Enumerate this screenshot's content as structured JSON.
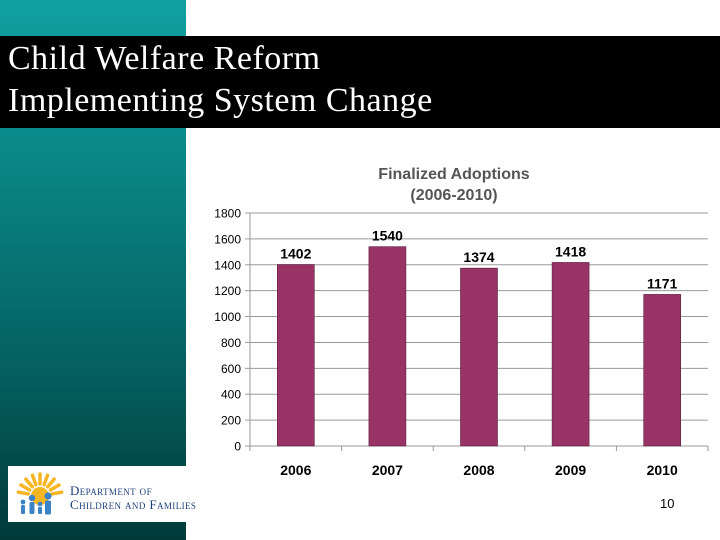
{
  "slide": {
    "title_line_1": "Child Welfare Reform",
    "title_line_2": "Implementing System Change",
    "page_number": "10"
  },
  "logo": {
    "line_1": "Department of",
    "line_2": "Children and Families"
  },
  "colors": {
    "bar": "#993366",
    "sidebar": "#0a8686",
    "title_bar": "#000000",
    "logo_sun": "#f5b622",
    "logo_figures": "#3b83c4"
  },
  "chart_data": {
    "type": "bar",
    "title": "Finalized Adoptions",
    "subtitle": "(2006-2010)",
    "categories": [
      "2006",
      "2007",
      "2008",
      "2009",
      "2010"
    ],
    "values": [
      1402,
      1540,
      1374,
      1418,
      1171
    ],
    "data_labels": [
      "1402",
      "1540",
      "1374",
      "1418",
      "1171"
    ],
    "ylim": [
      0,
      1800
    ],
    "yticks": [
      0,
      200,
      400,
      600,
      800,
      1000,
      1200,
      1400,
      1600,
      1800
    ],
    "grid": true,
    "legend": "none"
  }
}
